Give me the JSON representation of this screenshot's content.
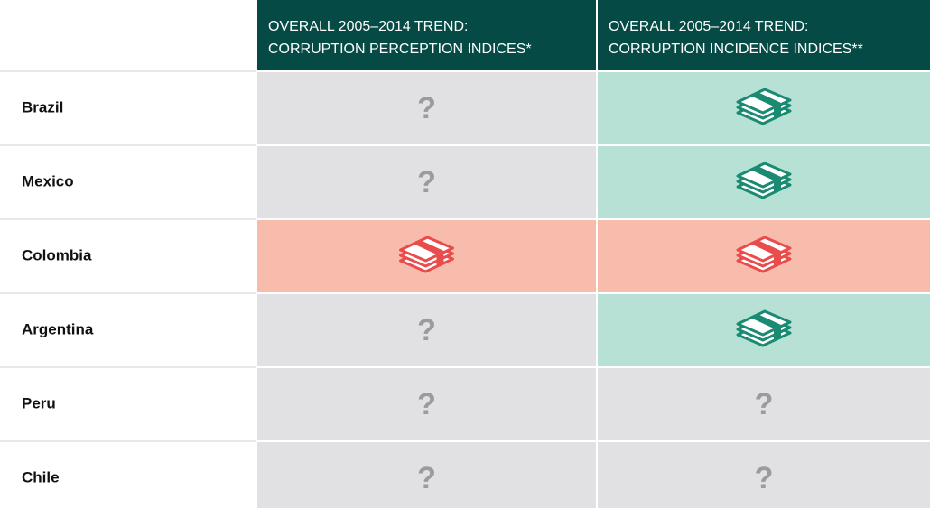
{
  "table": {
    "header": [
      {
        "lines": [
          "OVERALL 2005–2014 TREND:",
          "CORRUPTION PERCEPTION INDICES*"
        ]
      },
      {
        "lines": [
          "OVERALL 2005–2014 TREND:",
          "CORRUPTION INCIDENCE INDICES**"
        ]
      }
    ],
    "header_color": "#054a45",
    "rows": [
      {
        "label": "Brazil",
        "cells": [
          {
            "background": "#e1e1e3",
            "text": "?"
          },
          {
            "background": "#b6e1d4",
            "icon_color": "#1a8a72"
          }
        ]
      },
      {
        "label": "Mexico",
        "cells": [
          {
            "background": "#e1e1e3",
            "text": "?"
          },
          {
            "background": "#b6e1d4",
            "icon_color": "#1a8a72"
          }
        ]
      },
      {
        "label": "Colombia",
        "cells": [
          {
            "background": "#f8bcad",
            "icon_color": "#ea4c4c"
          },
          {
            "background": "#f8bcad",
            "icon_color": "#ea4c4c"
          }
        ]
      },
      {
        "label": "Argentina",
        "cells": [
          {
            "background": "#e1e1e3",
            "text": "?"
          },
          {
            "background": "#b6e1d4",
            "icon_color": "#1a8a72"
          }
        ]
      },
      {
        "label": "Peru",
        "cells": [
          {
            "background": "#e1e1e3",
            "text": "?"
          },
          {
            "background": "#e1e1e3",
            "text": "?"
          }
        ]
      },
      {
        "label": "Chile",
        "cells": [
          {
            "background": "#e1e1e3",
            "text": "?"
          },
          {
            "background": "#e1e1e3",
            "text": "?"
          }
        ]
      }
    ]
  }
}
